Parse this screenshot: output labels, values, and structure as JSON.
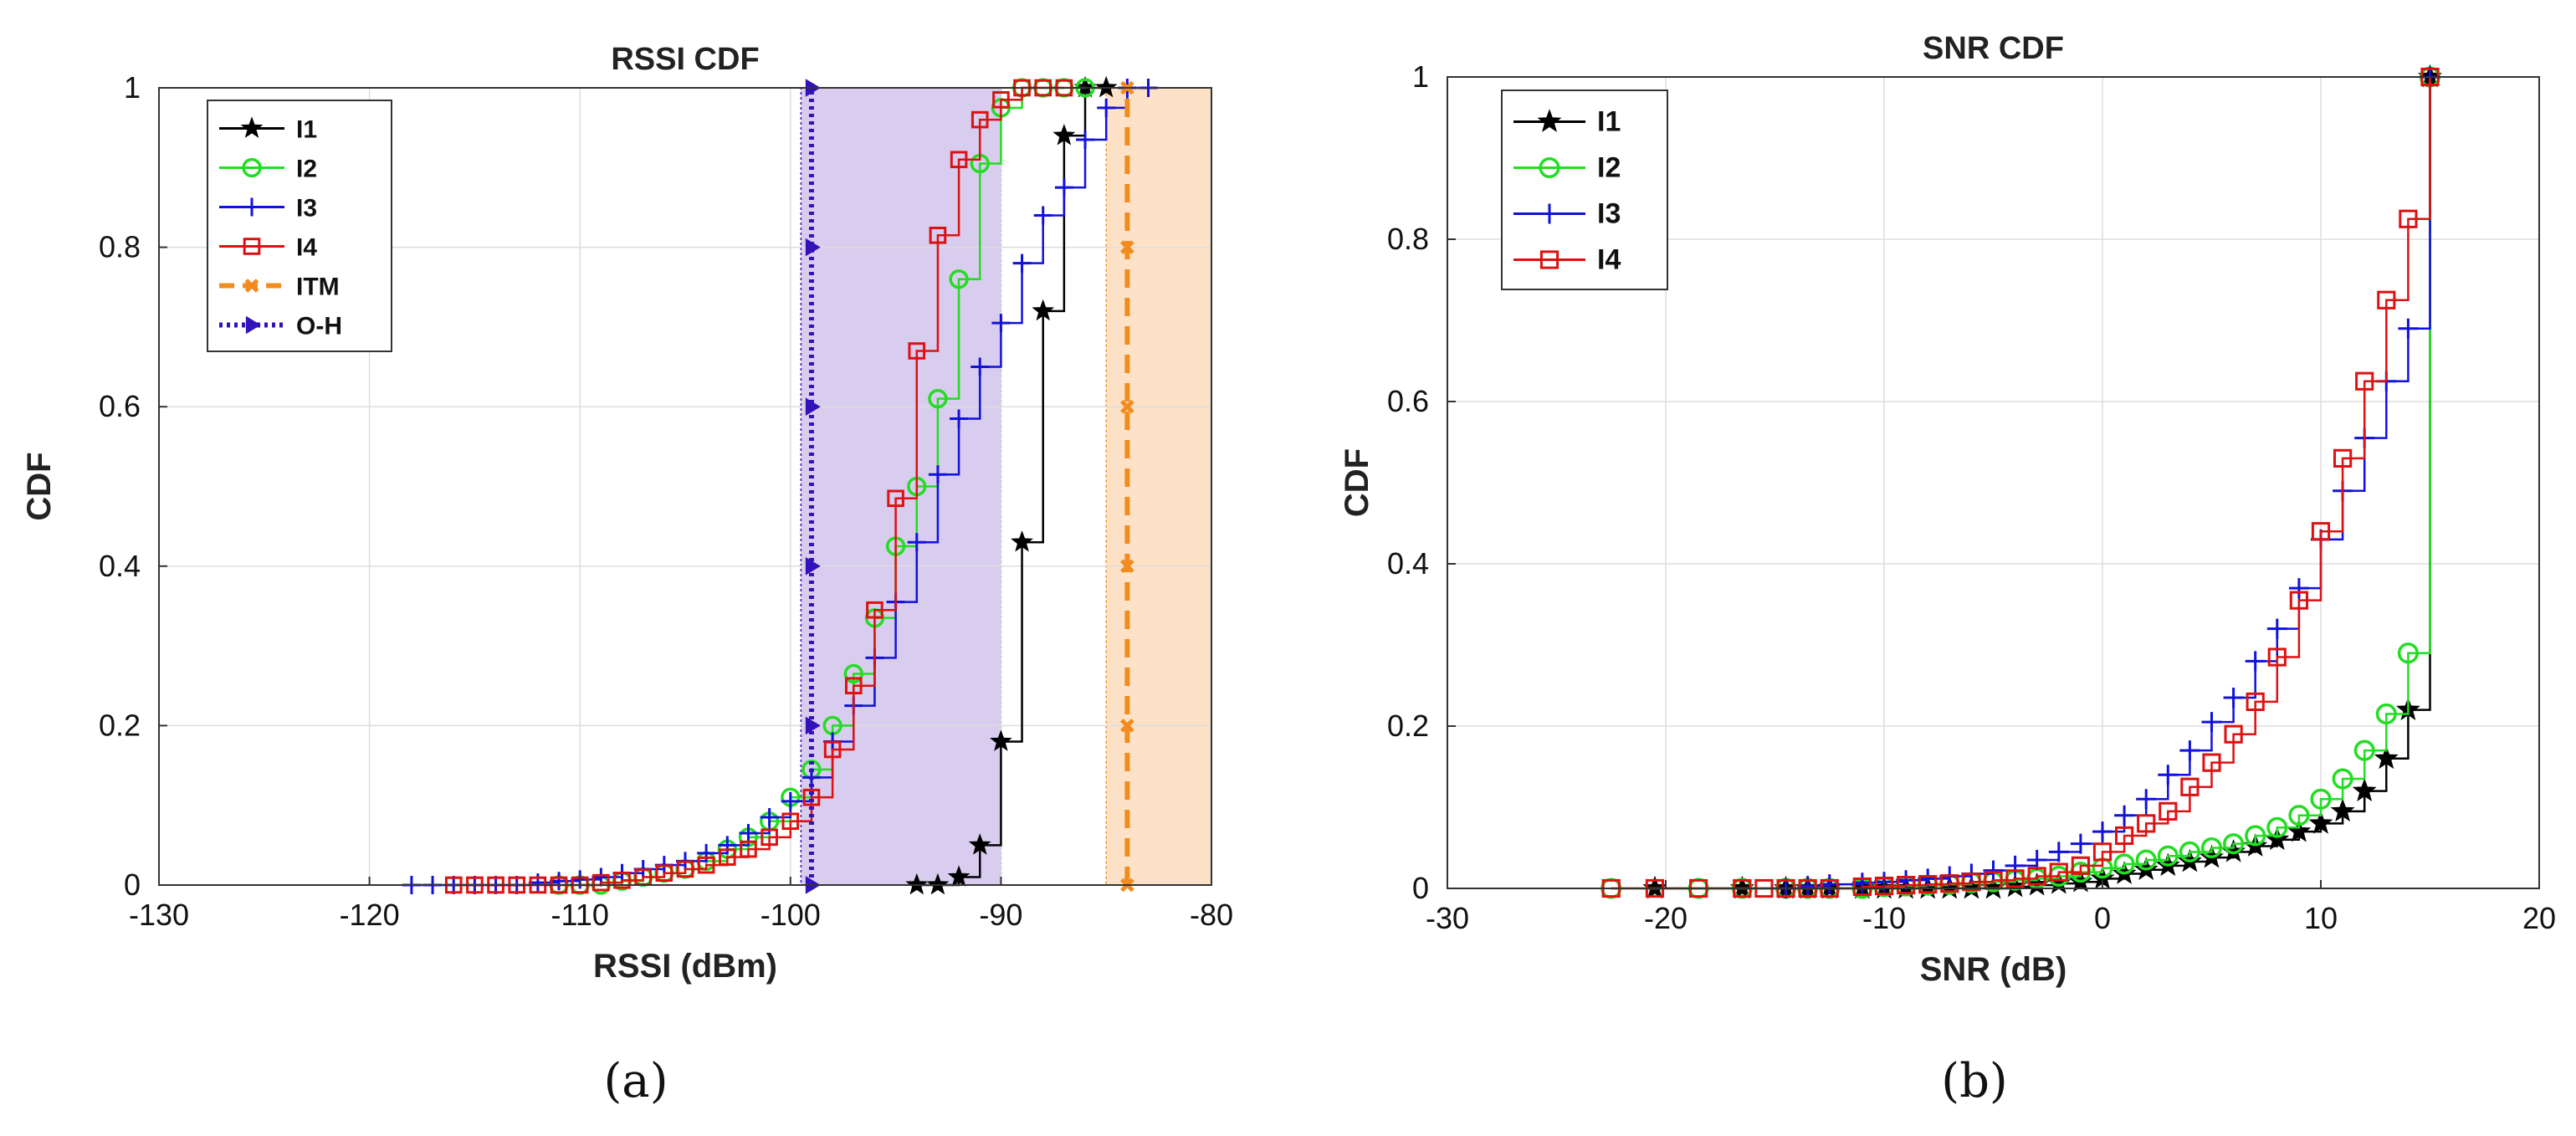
{
  "captions": {
    "a": "(a)",
    "b": "(b)"
  },
  "chart_data": [
    {
      "type": "line",
      "step": true,
      "title": "RSSI CDF",
      "xlabel": "RSSI (dBm)",
      "ylabel": "CDF",
      "xlim": [
        -130,
        -80
      ],
      "ylim": [
        0,
        1
      ],
      "xticks": [
        "-130",
        "-120",
        "-110",
        "-100",
        "-90",
        "-80"
      ],
      "yticks": [
        "0",
        "0.2",
        "0.4",
        "0.6",
        "0.8",
        "1"
      ],
      "grid": true,
      "legend_position": "top-left",
      "shaded_regions": [
        {
          "name": "O-H",
          "x0": -99.5,
          "x1": -90,
          "color": "#d8cdee"
        },
        {
          "name": "ITM",
          "x0": -85,
          "x1": -80,
          "color": "#fde2c8"
        }
      ],
      "series": [
        {
          "name": "I1",
          "color": "#000000",
          "marker": "star",
          "x": [
            -94,
            -93,
            -92,
            -91,
            -90,
            -89,
            -88,
            -87,
            -86,
            -85
          ],
          "y": [
            0.0,
            0.0,
            0.01,
            0.05,
            0.18,
            0.43,
            0.72,
            0.94,
            1.0,
            1.0
          ]
        },
        {
          "name": "I2",
          "color": "#22dd22",
          "marker": "circle",
          "x": [
            -111,
            -110,
            -109,
            -108,
            -107,
            -106,
            -105,
            -104,
            -103,
            -102,
            -101,
            -100,
            -99,
            -98,
            -97,
            -96,
            -95,
            -94,
            -93,
            -92,
            -91,
            -90,
            -89,
            -88,
            -87,
            -86
          ],
          "y": [
            0.0,
            0.0,
            0.0,
            0.005,
            0.01,
            0.015,
            0.02,
            0.03,
            0.045,
            0.06,
            0.08,
            0.11,
            0.145,
            0.2,
            0.265,
            0.335,
            0.425,
            0.5,
            0.61,
            0.76,
            0.905,
            0.975,
            1.0,
            1.0,
            1.0,
            1.0
          ]
        },
        {
          "name": "I3",
          "color": "#1111dd",
          "marker": "plus",
          "x": [
            -118,
            -117,
            -116,
            -115,
            -114,
            -113,
            -112,
            -111,
            -110,
            -109,
            -108,
            -107,
            -106,
            -105,
            -104,
            -103,
            -102,
            -101,
            -100,
            -99,
            -98,
            -97,
            -96,
            -95,
            -94,
            -93,
            -92,
            -91,
            -90,
            -89,
            -88,
            -87,
            -86,
            -85,
            -84,
            -83
          ],
          "y": [
            0.0,
            0.0,
            0.0,
            0.0,
            0.0,
            0.0,
            0.003,
            0.005,
            0.007,
            0.01,
            0.015,
            0.02,
            0.025,
            0.03,
            0.04,
            0.05,
            0.065,
            0.085,
            0.105,
            0.135,
            0.18,
            0.225,
            0.285,
            0.355,
            0.43,
            0.515,
            0.585,
            0.65,
            0.705,
            0.78,
            0.84,
            0.875,
            0.935,
            0.975,
            1.0,
            1.0
          ]
        },
        {
          "name": "I4",
          "color": "#dd1111",
          "marker": "square",
          "x": [
            -116,
            -115,
            -114,
            -113,
            -112,
            -111,
            -110,
            -109,
            -108,
            -107,
            -106,
            -105,
            -104,
            -103,
            -102,
            -101,
            -100,
            -99,
            -98,
            -97,
            -96,
            -95,
            -94,
            -93,
            -92,
            -91,
            -90,
            -89,
            -88,
            -87
          ],
          "y": [
            0.0,
            0.0,
            0.0,
            0.0,
            0.0,
            0.0,
            0.0,
            0.003,
            0.006,
            0.01,
            0.015,
            0.02,
            0.025,
            0.035,
            0.045,
            0.06,
            0.08,
            0.11,
            0.17,
            0.25,
            0.345,
            0.485,
            0.67,
            0.815,
            0.91,
            0.96,
            0.985,
            1.0,
            1.0,
            1.0
          ]
        },
        {
          "name": "ITM",
          "color": "#f28c1e",
          "marker": "x",
          "dashed": true,
          "x": [
            -84,
            -84,
            -84,
            -84,
            -84,
            -84
          ],
          "y": [
            0,
            0.2,
            0.4,
            0.6,
            0.8,
            1.0
          ]
        },
        {
          "name": "O-H",
          "color": "#3311bb",
          "marker": "triangle-right",
          "dotted": true,
          "x": [
            -99,
            -99,
            -99,
            -99,
            -99,
            -99
          ],
          "y": [
            0,
            0.2,
            0.4,
            0.6,
            0.8,
            1.0
          ]
        }
      ]
    },
    {
      "type": "line",
      "step": true,
      "title": "SNR CDF",
      "xlabel": "SNR (dB)",
      "ylabel": "CDF",
      "xlim": [
        -30,
        20
      ],
      "ylim": [
        0,
        1
      ],
      "xticks": [
        "-30",
        "-20",
        "-10",
        "0",
        "10",
        "20"
      ],
      "yticks": [
        "0",
        "0.2",
        "0.4",
        "0.6",
        "0.8",
        "1"
      ],
      "grid": true,
      "legend_position": "top-left",
      "series": [
        {
          "name": "I1",
          "color": "#000000",
          "marker": "star",
          "x": [
            -20.5,
            -16.5,
            -14.5,
            -13.5,
            -12.5,
            -11,
            -10,
            -9,
            -8,
            -7,
            -6,
            -5,
            -4,
            -3,
            -2,
            -1,
            0,
            1,
            2,
            3,
            4,
            5,
            6,
            7,
            8,
            9,
            10,
            11,
            12,
            13,
            14,
            15
          ],
          "y": [
            0.0,
            0.0,
            0.0,
            0.0,
            0.0,
            0.0,
            0.0,
            0.0,
            0.0,
            0.0,
            0.0,
            0.0,
            0.002,
            0.004,
            0.006,
            0.008,
            0.012,
            0.018,
            0.023,
            0.028,
            0.033,
            0.038,
            0.045,
            0.052,
            0.06,
            0.07,
            0.08,
            0.095,
            0.12,
            0.16,
            0.22,
            1.0
          ]
        },
        {
          "name": "I2",
          "color": "#22dd22",
          "marker": "circle",
          "x": [
            -22.5,
            -18.5,
            -16.5,
            -14.5,
            -13.5,
            -12.5,
            -11,
            -10,
            -9,
            -8,
            -7,
            -6,
            -5,
            -4,
            -3,
            -2,
            -1,
            0,
            1,
            2,
            3,
            4,
            5,
            6,
            7,
            8,
            9,
            10,
            11,
            12,
            13,
            14,
            15
          ],
          "y": [
            0.0,
            0.0,
            0.0,
            0.0,
            0.0,
            0.0,
            0.0,
            0.002,
            0.003,
            0.004,
            0.005,
            0.007,
            0.008,
            0.01,
            0.012,
            0.015,
            0.02,
            0.025,
            0.03,
            0.035,
            0.04,
            0.045,
            0.05,
            0.055,
            0.065,
            0.075,
            0.09,
            0.11,
            0.135,
            0.17,
            0.215,
            0.29,
            1.0
          ]
        },
        {
          "name": "I3",
          "color": "#1111dd",
          "marker": "plus",
          "x": [
            -14.5,
            -13.5,
            -12.5,
            -11,
            -10,
            -9,
            -8,
            -7,
            -6,
            -5,
            -4,
            -3,
            -2,
            -1,
            0,
            1,
            2,
            3,
            4,
            5,
            6,
            7,
            8,
            9,
            10,
            11,
            12,
            13,
            14,
            15
          ],
          "y": [
            0.0,
            0.003,
            0.005,
            0.007,
            0.008,
            0.01,
            0.012,
            0.015,
            0.018,
            0.022,
            0.028,
            0.035,
            0.045,
            0.055,
            0.07,
            0.09,
            0.11,
            0.14,
            0.17,
            0.205,
            0.235,
            0.28,
            0.32,
            0.37,
            0.43,
            0.49,
            0.555,
            0.625,
            0.69,
            1.0
          ]
        },
        {
          "name": "I4",
          "color": "#dd1111",
          "marker": "square",
          "x": [
            -22.5,
            -20.5,
            -18.5,
            -16.5,
            -15.5,
            -14.5,
            -13.5,
            -12.5,
            -11,
            -10,
            -9,
            -8,
            -7,
            -6,
            -5,
            -4,
            -3,
            -2,
            -1,
            0,
            1,
            2,
            3,
            4,
            5,
            6,
            7,
            8,
            9,
            10,
            11,
            12,
            13,
            14,
            15
          ],
          "y": [
            0.0,
            0.0,
            0.0,
            0.0,
            0.0,
            0.0,
            0.0,
            0.0,
            0.002,
            0.003,
            0.004,
            0.005,
            0.006,
            0.008,
            0.01,
            0.012,
            0.015,
            0.02,
            0.028,
            0.045,
            0.065,
            0.08,
            0.095,
            0.125,
            0.155,
            0.19,
            0.23,
            0.285,
            0.355,
            0.44,
            0.53,
            0.625,
            0.725,
            0.825,
            1.0
          ]
        }
      ]
    }
  ]
}
